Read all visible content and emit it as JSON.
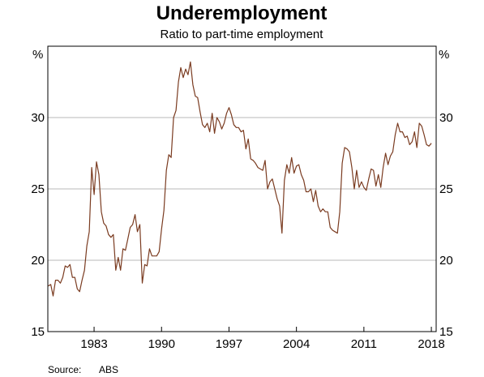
{
  "chart_data": {
    "type": "line",
    "title": "Underemployment",
    "subtitle": "Ratio to part-time employment",
    "ylabel_left": "%",
    "ylabel_right": "%",
    "ylim": [
      15,
      35
    ],
    "yticks": [
      15,
      20,
      25,
      30
    ],
    "xlim": [
      1978.2,
      2018.5
    ],
    "xticks": [
      1983,
      1990,
      1997,
      2004,
      2011,
      2018
    ],
    "grid": "horizontal",
    "line_color": "#7a3b20",
    "source_label": "Source:",
    "source_value": "ABS",
    "series": [
      {
        "x": [
          1978.25,
          1978.5,
          1978.75,
          1979.0,
          1979.25,
          1979.5,
          1979.75,
          1980.0,
          1980.25,
          1980.5,
          1980.75,
          1981.0,
          1981.25,
          1981.5,
          1981.75,
          1982.0,
          1982.25,
          1982.5,
          1982.75,
          1983.0,
          1983.25,
          1983.5,
          1983.75,
          1984.0,
          1984.25,
          1984.5,
          1984.75,
          1985.0,
          1985.25,
          1985.5,
          1985.75,
          1986.0,
          1986.25,
          1986.5,
          1986.75,
          1987.0,
          1987.25,
          1987.5,
          1987.75,
          1988.0,
          1988.25,
          1988.5,
          1988.75,
          1989.0,
          1989.25,
          1989.5,
          1989.75,
          1990.0,
          1990.25,
          1990.5,
          1990.75,
          1991.0,
          1991.25,
          1991.5,
          1991.75,
          1992.0,
          1992.25,
          1992.5,
          1992.75,
          1993.0,
          1993.25,
          1993.5,
          1993.75,
          1994.0,
          1994.25,
          1994.5,
          1994.75,
          1995.0,
          1995.25,
          1995.5,
          1995.75,
          1996.0,
          1996.25,
          1996.5,
          1996.75,
          1997.0,
          1997.25,
          1997.5,
          1997.75,
          1998.0,
          1998.25,
          1998.5,
          1998.75,
          1999.0,
          1999.25,
          1999.5,
          1999.75,
          2000.0,
          2000.25,
          2000.5,
          2000.75,
          2001.0,
          2001.25,
          2001.5,
          2001.75,
          2002.0,
          2002.25,
          2002.5,
          2002.75,
          2003.0,
          2003.25,
          2003.5,
          2003.75,
          2004.0,
          2004.25,
          2004.5,
          2004.75,
          2005.0,
          2005.25,
          2005.5,
          2005.75,
          2006.0,
          2006.25,
          2006.5,
          2006.75,
          2007.0,
          2007.25,
          2007.5,
          2007.75,
          2008.0,
          2008.25,
          2008.5,
          2008.75,
          2009.0,
          2009.25,
          2009.5,
          2009.75,
          2010.0,
          2010.25,
          2010.5,
          2010.75,
          2011.0,
          2011.25,
          2011.5,
          2011.75,
          2012.0,
          2012.25,
          2012.5,
          2012.75,
          2013.0,
          2013.25,
          2013.5,
          2013.75,
          2014.0,
          2014.25,
          2014.5,
          2014.75,
          2015.0,
          2015.25,
          2015.5,
          2015.75,
          2016.0,
          2016.25,
          2016.5,
          2016.75,
          2017.0,
          2017.25,
          2017.5,
          2017.75,
          2018.0
        ],
        "values": [
          18.2,
          18.3,
          17.5,
          18.6,
          18.6,
          18.4,
          18.8,
          19.6,
          19.5,
          19.7,
          18.8,
          18.8,
          18.0,
          17.8,
          18.6,
          19.3,
          21.0,
          22.0,
          26.5,
          24.6,
          26.9,
          26.0,
          23.4,
          22.6,
          22.4,
          21.8,
          21.6,
          21.8,
          19.3,
          20.2,
          19.3,
          20.8,
          20.7,
          21.5,
          22.3,
          22.5,
          23.2,
          22.0,
          22.5,
          18.4,
          19.7,
          19.6,
          20.8,
          20.3,
          20.3,
          20.3,
          20.6,
          22.2,
          23.5,
          26.3,
          27.4,
          27.2,
          30.0,
          30.5,
          32.5,
          33.5,
          32.8,
          33.4,
          33.0,
          33.9,
          32.3,
          31.5,
          31.4,
          30.4,
          29.5,
          29.3,
          29.6,
          29.0,
          30.3,
          28.9,
          30.0,
          29.7,
          29.2,
          29.6,
          30.3,
          30.7,
          30.2,
          29.5,
          29.3,
          29.3,
          29.0,
          29.1,
          27.8,
          28.5,
          27.1,
          27.0,
          26.8,
          26.5,
          26.4,
          26.3,
          27.0,
          25.0,
          25.5,
          25.7,
          25.0,
          24.3,
          23.8,
          21.9,
          25.6,
          26.7,
          26.1,
          27.2,
          26.1,
          26.6,
          26.7,
          26.0,
          25.6,
          24.8,
          24.8,
          25.0,
          24.1,
          24.9,
          23.8,
          23.4,
          23.6,
          23.4,
          23.4,
          22.3,
          22.1,
          22.0,
          21.9,
          23.4,
          26.8,
          27.9,
          27.8,
          27.6,
          26.5,
          25.0,
          26.3,
          25.1,
          25.5,
          25.1,
          24.9,
          25.7,
          26.4,
          26.3,
          25.2,
          26.0,
          25.1,
          26.5,
          27.5,
          26.7,
          27.3,
          27.6,
          28.8,
          29.6,
          29.0,
          29.0,
          28.6,
          28.7,
          28.1,
          28.3,
          29.0,
          27.9,
          29.6,
          29.4,
          28.8,
          28.1,
          28.0,
          28.2
        ]
      }
    ]
  }
}
